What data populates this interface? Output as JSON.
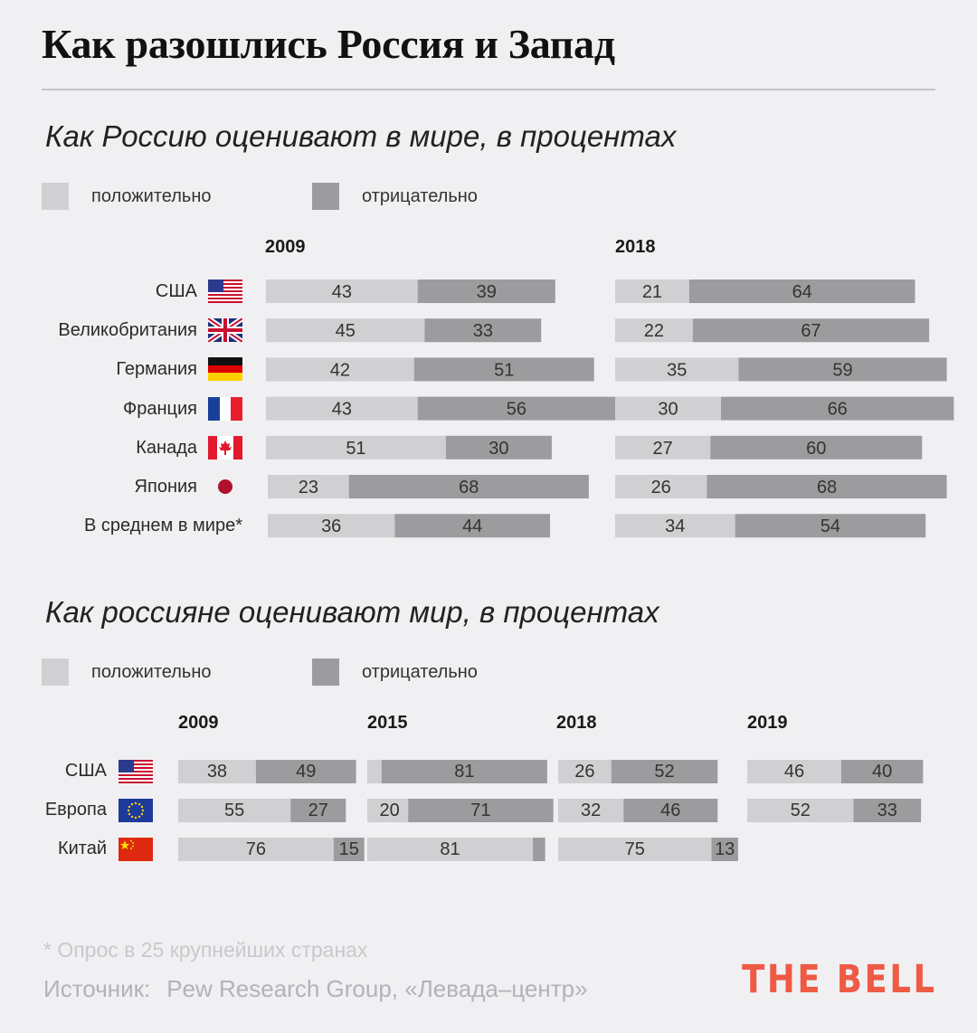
{
  "title": "Как разошлись Россия и Запад",
  "colors": {
    "positive": "#d0d0d3",
    "negative": "#9c9c9e",
    "background": "#f0f0f2",
    "brand": "#ef5a45"
  },
  "legend": {
    "positive": "положительно",
    "negative": "отрицательно"
  },
  "footnote": "* Опрос в 25 крупнейших странах",
  "source_label": "Источник:",
  "source_text": "Pew Research Group, «Левада–центр»",
  "brand": "THE BELL",
  "chart_data": [
    {
      "type": "bar",
      "stacked": true,
      "orientation": "horizontal",
      "title": "Как Россию оценивают в мире, в процентах",
      "categories": [
        "США",
        "Великобритания",
        "Германия",
        "Франция",
        "Канада",
        "Япония",
        "В среднем в мире*"
      ],
      "flags": [
        "us-flag-icon",
        "uk-flag-icon",
        "germany-flag-icon",
        "france-flag-icon",
        "canada-flag-icon",
        "japan-flag-icon",
        ""
      ],
      "panels": [
        {
          "year": "2009",
          "positive": [
            43,
            45,
            42,
            43,
            51,
            23,
            36
          ],
          "negative": [
            39,
            33,
            51,
            56,
            30,
            68,
            44
          ]
        },
        {
          "year": "2018",
          "positive": [
            21,
            22,
            35,
            30,
            27,
            26,
            34
          ],
          "negative": [
            64,
            67,
            59,
            66,
            60,
            68,
            54
          ]
        }
      ],
      "series": [
        {
          "name": "положительно"
        },
        {
          "name": "отрицательно"
        }
      ],
      "legend": "top-left"
    },
    {
      "type": "bar",
      "stacked": true,
      "orientation": "horizontal",
      "title": "Как россияне оценивают мир, в процентах",
      "categories": [
        "США",
        "Европа",
        "Китай"
      ],
      "flags": [
        "us-flag-icon",
        "eu-flag-icon",
        "china-flag-icon"
      ],
      "panels": [
        {
          "year": "2009",
          "positive": [
            38,
            55,
            76
          ],
          "negative": [
            49,
            27,
            15
          ]
        },
        {
          "year": "2015",
          "positive": [
            7,
            20,
            81
          ],
          "negative": [
            81,
            71,
            6
          ]
        },
        {
          "year": "2018",
          "positive": [
            26,
            32,
            75
          ],
          "negative": [
            52,
            46,
            13
          ]
        },
        {
          "year": "2019",
          "positive": [
            46,
            52,
            null
          ],
          "negative": [
            40,
            33,
            null
          ]
        }
      ],
      "hidden_labels": {
        "2015": {
          "positive": [
            true,
            false,
            false
          ],
          "negative": [
            false,
            false,
            true
          ]
        }
      },
      "series": [
        {
          "name": "положительно"
        },
        {
          "name": "отрицательно"
        }
      ],
      "legend": "top-left"
    }
  ]
}
